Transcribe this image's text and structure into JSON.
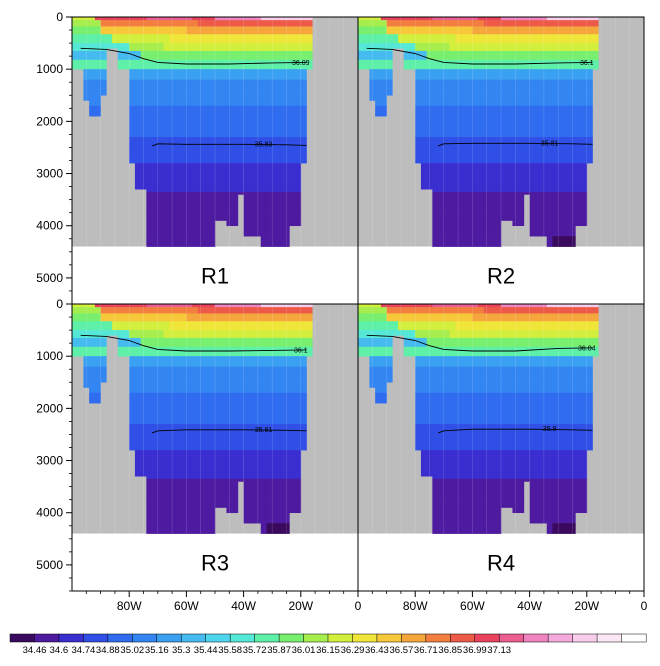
{
  "chart_data": {
    "type": "heatmap",
    "title": "",
    "xlabel": "",
    "ylabel": "",
    "xlim": [
      -100,
      0
    ],
    "ylim": [
      5500,
      0
    ],
    "x_ticks": [
      {
        "value": -80,
        "label": "80W"
      },
      {
        "value": -60,
        "label": "60W"
      },
      {
        "value": -40,
        "label": "40W"
      },
      {
        "value": -20,
        "label": "20W"
      },
      {
        "value": 0,
        "label": "0"
      }
    ],
    "y_ticks": [
      {
        "value": 0,
        "label": "0"
      },
      {
        "value": 1000,
        "label": "1000"
      },
      {
        "value": 2000,
        "label": "2000"
      },
      {
        "value": 3000,
        "label": "3000"
      },
      {
        "value": 4000,
        "label": "4000"
      },
      {
        "value": 5000,
        "label": "5000"
      }
    ],
    "panels": [
      {
        "name": "R1",
        "contours": [
          {
            "label": "36.09",
            "depth": 880
          },
          {
            "label": "35.83",
            "depth": 2440
          }
        ],
        "deep_max": false,
        "deep_max_2": false
      },
      {
        "name": "R2",
        "contours": [
          {
            "label": "36.1",
            "depth": 880
          },
          {
            "label": "35.81",
            "depth": 2420
          }
        ],
        "deep_max": true,
        "deep_max_2": false
      },
      {
        "name": "R3",
        "contours": [
          {
            "label": "36.1",
            "depth": 890
          },
          {
            "label": "35.81",
            "depth": 2410
          }
        ],
        "deep_max": true,
        "deep_max_2": false
      },
      {
        "name": "R4",
        "contours": [
          {
            "label": "36.04",
            "depth": 850
          },
          {
            "label": "35.8",
            "depth": 2400
          }
        ],
        "deep_max": true,
        "deep_max_2": true
      }
    ],
    "colorbar": {
      "labels": [
        "34.46",
        "34.6",
        "34.74",
        "34.88",
        "35.02",
        "35.16",
        "35.3",
        "35.44",
        "35.58",
        "35.72",
        "35.87",
        "36.01",
        "36.15",
        "36.29",
        "36.43",
        "36.57",
        "36.71",
        "36.85",
        "36.99",
        "37.13"
      ],
      "colors": [
        "#3a0a5e",
        "#4d1aa0",
        "#3b2ed0",
        "#2f4fe6",
        "#2f6cf0",
        "#3386f2",
        "#3aa0f2",
        "#45bbf0",
        "#4ed6ee",
        "#55e8d6",
        "#5ef0a8",
        "#78ef6e",
        "#a6ee4e",
        "#d2ef3e",
        "#f0e63a",
        "#f6c83a",
        "#f5a63c",
        "#f27e40",
        "#ee5a48",
        "#e8425c",
        "#ea5e92",
        "#ef84c0",
        "#f4aadc",
        "#f7cdeb",
        "#fbe8f4",
        "#ffffff"
      ]
    }
  }
}
